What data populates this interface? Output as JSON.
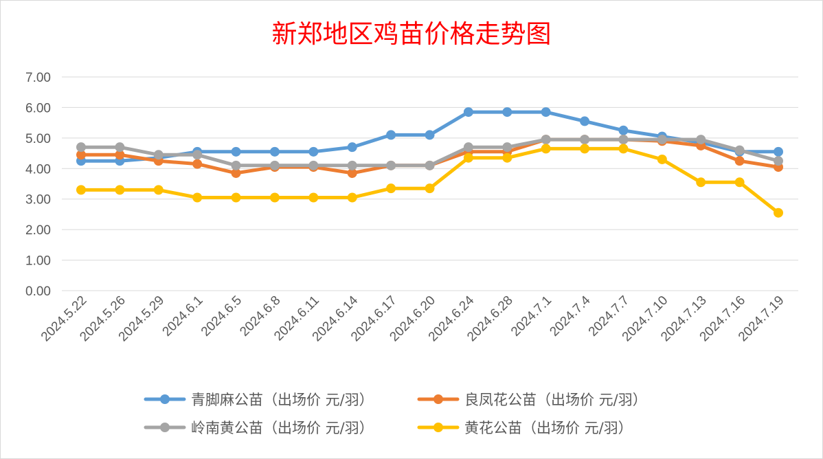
{
  "chart_data": {
    "type": "line",
    "title": "新郑地区鸡苗价格走势图",
    "xlabel": "",
    "ylabel": "",
    "ylim": [
      0,
      7
    ],
    "yticks": [
      "0.00",
      "1.00",
      "2.00",
      "3.00",
      "4.00",
      "5.00",
      "6.00",
      "7.00"
    ],
    "grid": "horizontal",
    "legend_position": "bottom",
    "categories": [
      "2024.5.22",
      "2024.5.26",
      "2024.5.29",
      "2024.6.1",
      "2024.6.5",
      "2024.6.8",
      "2024.6.11",
      "2024.6.14",
      "2024.6.17",
      "2024.6.20",
      "2024.6.24",
      "2024.6.28",
      "2024.7.1",
      "2024.7.4",
      "2024.7.7",
      "2024.7.10",
      "2024.7.13",
      "2024.7.16",
      "2024.7.19"
    ],
    "series": [
      {
        "name": "青脚麻公苗（出场价 元/羽）",
        "color": "#5b9bd5",
        "values": [
          4.25,
          4.25,
          4.35,
          4.55,
          4.55,
          4.55,
          4.55,
          4.7,
          5.1,
          5.1,
          5.85,
          5.85,
          5.85,
          5.55,
          5.25,
          5.05,
          4.85,
          4.55,
          4.55
        ]
      },
      {
        "name": "良凤花公苗（出场价 元/羽）",
        "color": "#ed7d31",
        "values": [
          4.45,
          4.45,
          4.25,
          4.15,
          3.85,
          4.05,
          4.05,
          3.85,
          4.1,
          4.1,
          4.55,
          4.55,
          4.95,
          4.95,
          4.95,
          4.9,
          4.75,
          4.25,
          4.05
        ]
      },
      {
        "name": "岭南黄公苗（出场价 元/羽）",
        "color": "#a5a5a5",
        "values": [
          4.7,
          4.7,
          4.45,
          4.45,
          4.1,
          4.1,
          4.1,
          4.1,
          4.1,
          4.1,
          4.7,
          4.7,
          4.95,
          4.95,
          4.95,
          4.95,
          4.95,
          4.6,
          4.25
        ]
      },
      {
        "name": "黄花公苗（出场价 元/羽）",
        "color": "#ffc000",
        "values": [
          3.3,
          3.3,
          3.3,
          3.05,
          3.05,
          3.05,
          3.05,
          3.05,
          3.35,
          3.35,
          4.35,
          4.35,
          4.65,
          4.65,
          4.65,
          4.3,
          3.55,
          3.55,
          2.55
        ]
      }
    ]
  }
}
